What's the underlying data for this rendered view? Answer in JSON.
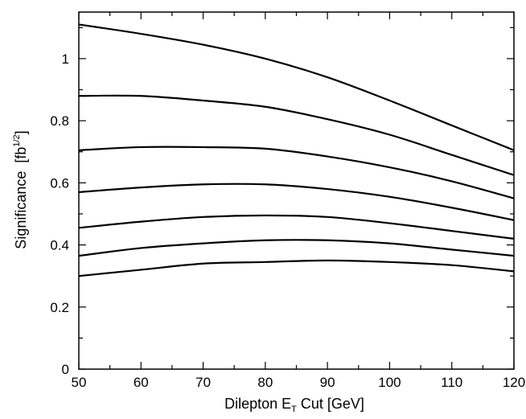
{
  "chart_data": {
    "type": "line",
    "xlabel_main": "Dilepton E",
    "xlabel_sub": "T",
    "xlabel_rest": " Cut [GeV]",
    "ylabel_main": "Significance  [fb",
    "ylabel_sup": "1/2",
    "ylabel_rest": "]",
    "xlim": [
      50,
      120
    ],
    "ylim": [
      0,
      1.15
    ],
    "grid": false,
    "legend": "none",
    "x_ticks": [
      50,
      60,
      70,
      80,
      90,
      100,
      110,
      120
    ],
    "x_tick_labels": [
      "50",
      "60",
      "70",
      "80",
      "90",
      "100",
      "110",
      "120"
    ],
    "y_ticks": [
      0,
      0.2,
      0.4,
      0.6,
      0.8,
      1.0
    ],
    "y_tick_labels": [
      "0",
      "0.2",
      "0.4",
      "0.6",
      "0.8",
      "1"
    ],
    "x": [
      50,
      60,
      70,
      80,
      90,
      100,
      110,
      120
    ],
    "series": [
      {
        "values": [
          1.11,
          1.08,
          1.045,
          1.0,
          0.94,
          0.865,
          0.785,
          0.705
        ]
      },
      {
        "values": [
          0.88,
          0.88,
          0.865,
          0.845,
          0.805,
          0.755,
          0.69,
          0.625
        ]
      },
      {
        "values": [
          0.705,
          0.715,
          0.715,
          0.71,
          0.685,
          0.65,
          0.605,
          0.55
        ]
      },
      {
        "values": [
          0.57,
          0.585,
          0.595,
          0.595,
          0.58,
          0.555,
          0.52,
          0.48
        ]
      },
      {
        "values": [
          0.455,
          0.475,
          0.49,
          0.495,
          0.49,
          0.47,
          0.445,
          0.42
        ]
      },
      {
        "values": [
          0.365,
          0.39,
          0.405,
          0.415,
          0.415,
          0.405,
          0.385,
          0.365
        ]
      },
      {
        "values": [
          0.3,
          0.32,
          0.34,
          0.345,
          0.35,
          0.345,
          0.335,
          0.315
        ]
      }
    ]
  }
}
